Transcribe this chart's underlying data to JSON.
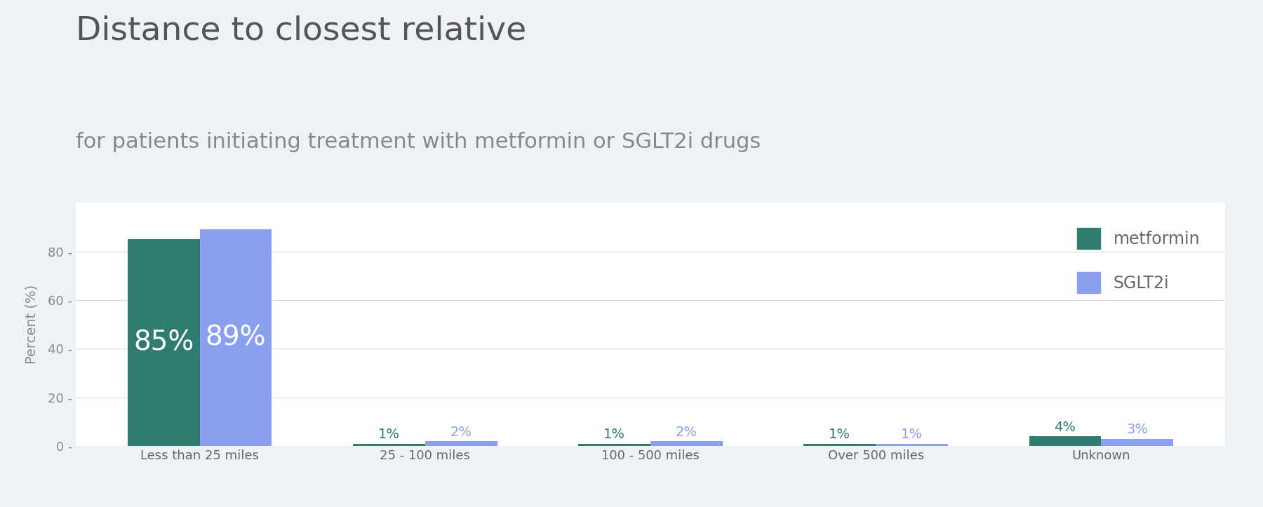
{
  "title_line1": "Distance to closest relative",
  "title_line2": "for patients initiating treatment with metformin or SGLT2i drugs",
  "categories": [
    "Less than 25 miles",
    "25 - 100 miles",
    "100 - 500 miles",
    "Over 500 miles",
    "Unknown"
  ],
  "metformin_values": [
    85,
    1,
    1,
    1,
    4
  ],
  "sglt2i_values": [
    89,
    2,
    2,
    1,
    3
  ],
  "metformin_color": "#2e7d6e",
  "sglt2i_color": "#8b9fef",
  "metformin_label": "metformin",
  "sglt2i_label": "SGLT2i",
  "ylabel": "Percent (%)",
  "ylim": [
    0,
    100
  ],
  "yticks": [
    0,
    20,
    40,
    60,
    80
  ],
  "background_color": "#eef2f7",
  "plot_bg_color": "#ffffff",
  "grid_color": "#d8dde6",
  "title1_color": "#555555",
  "title2_color": "#888888",
  "label_color_inside": "#ffffff",
  "label_color_outside_met": "#2e7d6e",
  "label_color_outside_sglt": "#8b9fef",
  "bar_width": 0.32,
  "title1_fontsize": 34,
  "title2_fontsize": 22,
  "tick_fontsize": 13,
  "label_fontsize_large": 28,
  "label_fontsize_small": 14,
  "ylabel_fontsize": 14,
  "legend_fontsize": 17
}
